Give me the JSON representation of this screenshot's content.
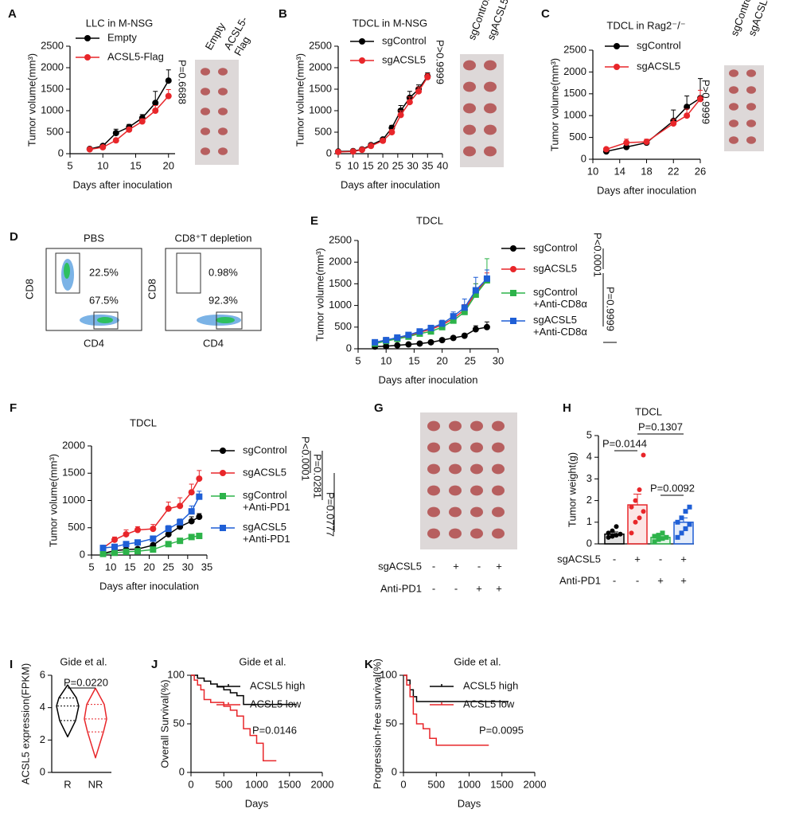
{
  "chart_data": [
    {
      "panel": "A",
      "type": "line",
      "title": "LLC in M-NSG",
      "x_label": "Days after inoculation",
      "y_label": "Tumor volume(mm³)",
      "x": [
        8,
        10,
        12,
        14,
        16,
        18,
        20
      ],
      "series": [
        {
          "name": "Empty",
          "color": "#000000",
          "marker": "circle",
          "values": [
            110,
            180,
            480,
            620,
            830,
            1180,
            1700
          ],
          "errors": [
            20,
            40,
            90,
            60,
            80,
            270,
            250
          ]
        },
        {
          "name": "ACSL5-Flag",
          "color": "#e8262a",
          "marker": "circle",
          "values": [
            100,
            150,
            310,
            560,
            750,
            1000,
            1340
          ],
          "errors": [
            20,
            30,
            40,
            50,
            60,
            120,
            150
          ]
        }
      ],
      "xlim": [
        5,
        21
      ],
      "xticks": [
        5,
        10,
        15,
        20
      ],
      "ylim": [
        0,
        2500
      ],
      "yticks": [
        0,
        500,
        1000,
        1500,
        2000,
        2500
      ],
      "annotations": [
        "P=0.6688"
      ],
      "photo_labels": [
        "Empty",
        "ACSL5-\nFlag"
      ]
    },
    {
      "panel": "B",
      "type": "line",
      "title": "TDCL  in M-NSG",
      "x_label": "Days after inoculation",
      "y_label": "Tumor volume(mm³)",
      "x": [
        5,
        10,
        13,
        16,
        20,
        23,
        26,
        29,
        32,
        35
      ],
      "series": [
        {
          "name": "sgControl",
          "color": "#000000",
          "marker": "circle",
          "values": [
            50,
            60,
            100,
            200,
            330,
            600,
            1000,
            1300,
            1500,
            1800
          ],
          "errors": [
            10,
            15,
            20,
            30,
            40,
            60,
            120,
            150,
            100,
            80
          ]
        },
        {
          "name": "sgACSL5",
          "color": "#e8262a",
          "marker": "circle",
          "values": [
            40,
            50,
            90,
            180,
            300,
            500,
            900,
            1200,
            1450,
            1780
          ],
          "errors": [
            10,
            10,
            20,
            30,
            40,
            60,
            100,
            120,
            100,
            80
          ]
        }
      ],
      "xlim": [
        5,
        40
      ],
      "xticks": [
        5,
        10,
        15,
        20,
        25,
        30,
        35,
        40
      ],
      "ylim": [
        0,
        2500
      ],
      "yticks": [
        0,
        500,
        1000,
        1500,
        2000,
        2500
      ],
      "annotations": [
        "P>0.9999"
      ],
      "photo_labels": [
        "sgControl",
        "sgACSL5"
      ]
    },
    {
      "panel": "C",
      "type": "line",
      "title": "TDCL in Rag2⁻/⁻",
      "x_label": "Days after inoculation",
      "y_label": "Tumor volume(mm³)",
      "x": [
        12,
        15,
        18,
        22,
        24,
        26
      ],
      "series": [
        {
          "name": "sgControl",
          "color": "#000000",
          "marker": "circle",
          "values": [
            180,
            280,
            380,
            880,
            1200,
            1400
          ],
          "errors": [
            30,
            60,
            50,
            250,
            250,
            450
          ]
        },
        {
          "name": "sgACSL5",
          "color": "#e8262a",
          "marker": "circle",
          "values": [
            230,
            380,
            400,
            820,
            1000,
            1380
          ],
          "errors": [
            30,
            80,
            60,
            100,
            150,
            200
          ]
        }
      ],
      "xlim": [
        10,
        26
      ],
      "xticks": [
        10,
        14,
        18,
        22,
        26
      ],
      "ylim": [
        0,
        2500
      ],
      "yticks": [
        0,
        500,
        1000,
        1500,
        2000,
        2500
      ],
      "annotations": [
        "P>0.9999"
      ],
      "photo_labels": [
        "sgControl",
        "sgACSL5"
      ]
    },
    {
      "panel": "E",
      "type": "line",
      "title": "TDCL",
      "x_label": "Days after inoculation",
      "y_label": "Tumor volume(mm³)",
      "x": [
        8,
        10,
        12,
        14,
        16,
        18,
        20,
        22,
        24,
        26,
        28
      ],
      "series": [
        {
          "name": "sgControl",
          "color": "#000000",
          "marker": "circle",
          "values": [
            50,
            60,
            80,
            100,
            120,
            150,
            200,
            250,
            300,
            450,
            500
          ],
          "errors": [
            10,
            10,
            15,
            15,
            20,
            20,
            30,
            40,
            50,
            80,
            120
          ]
        },
        {
          "name": "sgACSL5",
          "color": "#e8262a",
          "marker": "circle",
          "values": [
            150,
            200,
            250,
            300,
            380,
            450,
            550,
            700,
            900,
            1300,
            1600
          ],
          "errors": [
            20,
            30,
            30,
            40,
            50,
            60,
            80,
            100,
            120,
            200,
            150
          ]
        },
        {
          "name": "sgControl\n+Anti-CD8α",
          "color": "#2db34a",
          "marker": "square",
          "values": [
            120,
            180,
            230,
            280,
            350,
            400,
            500,
            650,
            850,
            1250,
            1580
          ],
          "errors": [
            20,
            20,
            30,
            40,
            40,
            50,
            70,
            90,
            120,
            250,
            500
          ]
        },
        {
          "name": "sgACSL5\n+Anti-CD8α",
          "color": "#1f5fd6",
          "marker": "square",
          "values": [
            150,
            200,
            260,
            320,
            400,
            480,
            580,
            750,
            950,
            1350,
            1620
          ],
          "errors": [
            20,
            30,
            30,
            40,
            50,
            60,
            80,
            100,
            200,
            300,
            200
          ]
        }
      ],
      "xlim": [
        5,
        30
      ],
      "xticks": [
        5,
        10,
        15,
        20,
        25,
        30
      ],
      "ylim": [
        0,
        2500
      ],
      "yticks": [
        0,
        500,
        1000,
        1500,
        2000,
        2500
      ],
      "annotations": [
        "P<0.0001",
        "P=0.9999"
      ]
    },
    {
      "panel": "F",
      "type": "line",
      "title": "TDCL",
      "x_label": "Days after inoculation",
      "y_label": "Tumor volume(mm³)",
      "x": [
        8,
        11,
        14,
        17,
        21,
        25,
        28,
        31,
        33
      ],
      "series": [
        {
          "name": "sgControl",
          "color": "#000000",
          "marker": "circle",
          "values": [
            30,
            80,
            100,
            110,
            180,
            380,
            520,
            620,
            700
          ],
          "errors": [
            10,
            20,
            20,
            20,
            30,
            50,
            60,
            80,
            60
          ]
        },
        {
          "name": "sgACSL5",
          "color": "#e8262a",
          "marker": "circle",
          "values": [
            130,
            280,
            380,
            460,
            480,
            850,
            900,
            1150,
            1400
          ],
          "errors": [
            20,
            50,
            80,
            60,
            80,
            120,
            150,
            150,
            150
          ]
        },
        {
          "name": "sgControl\n+Anti-PD1",
          "color": "#2db34a",
          "marker": "square",
          "values": [
            20,
            40,
            60,
            70,
            100,
            200,
            260,
            330,
            350
          ],
          "errors": [
            5,
            10,
            10,
            10,
            20,
            30,
            30,
            40,
            40
          ]
        },
        {
          "name": "sgACSL5\n+Anti-PD1",
          "color": "#1f5fd6",
          "marker": "square",
          "values": [
            130,
            150,
            200,
            230,
            300,
            480,
            600,
            800,
            1070
          ],
          "errors": [
            20,
            20,
            30,
            30,
            40,
            60,
            60,
            100,
            100
          ]
        }
      ],
      "xlim": [
        5,
        35
      ],
      "xticks": [
        5,
        10,
        15,
        20,
        25,
        30,
        35
      ],
      "ylim": [
        0,
        2000
      ],
      "yticks": [
        0,
        500,
        1000,
        1500,
        2000
      ],
      "annotations": [
        "P<0.0001",
        "P=0.0281",
        "P=0.0777"
      ]
    },
    {
      "panel": "H",
      "type": "bar",
      "title": "TDCL",
      "y_label": "Tumor weight(g)",
      "values": [
        0.45,
        1.8,
        0.3,
        1.0
      ],
      "errors": [
        0.1,
        0.5,
        0.1,
        0.2
      ],
      "colors": [
        "#000000",
        "#e8262a",
        "#2db34a",
        "#1f5fd6"
      ],
      "markers": [
        "circle",
        "circle",
        "square",
        "square"
      ],
      "points": [
        [
          0.3,
          0.35,
          0.4,
          0.45,
          0.5,
          0.6,
          0.8
        ],
        [
          0.5,
          1.0,
          1.2,
          1.5,
          1.7,
          2.0,
          2.5,
          4.1
        ],
        [
          0.1,
          0.2,
          0.25,
          0.3,
          0.35,
          0.4,
          0.5
        ],
        [
          0.3,
          0.5,
          0.7,
          0.9,
          1.0,
          1.2,
          1.5,
          1.7
        ]
      ],
      "ylim": [
        0,
        5
      ],
      "yticks": [
        0,
        1,
        2,
        3,
        4,
        5
      ],
      "rows": [
        {
          "label": "sgACSL5",
          "signs": [
            "-",
            "+",
            "-",
            "+"
          ]
        },
        {
          "label": "Anti-PD1",
          "signs": [
            "-",
            "-",
            "+",
            "+"
          ]
        }
      ],
      "annotations": [
        "P=0.0144",
        "P=0.1307",
        "P=0.0092"
      ]
    },
    {
      "panel": "I",
      "type": "violin",
      "title": "Gide et al.",
      "y_label": "ACSL5 expression(FPKM)",
      "categories": [
        "R",
        "NR"
      ],
      "colors": [
        "#000000",
        "#e8262a"
      ],
      "stats": [
        {
          "min": 2.2,
          "q1": 3.2,
          "median": 4.1,
          "q3": 4.6,
          "max": 5.4
        },
        {
          "min": 0.9,
          "q1": 2.5,
          "median": 3.3,
          "q3": 4.2,
          "max": 5.2
        }
      ],
      "ylim": [
        0,
        6
      ],
      "yticks": [
        0,
        2,
        4,
        6
      ],
      "annotations": [
        "P=0.0220"
      ]
    },
    {
      "panel": "J",
      "type": "survival",
      "title": "Gide et al.",
      "x_label": "Days",
      "y_label": "Overall Survival(%)",
      "series": [
        {
          "name": "ACSL5 high",
          "color": "#000000",
          "x": [
            0,
            100,
            200,
            300,
            400,
            500,
            600,
            700,
            800,
            1600
          ],
          "values": [
            100,
            97,
            94,
            91,
            88,
            85,
            82,
            79,
            70,
            70
          ]
        },
        {
          "name": "ACSL5 low",
          "color": "#e8262a",
          "x": [
            0,
            50,
            100,
            150,
            200,
            300,
            500,
            600,
            700,
            800,
            900,
            1000,
            1100,
            1300
          ],
          "values": [
            100,
            95,
            90,
            85,
            75,
            72,
            68,
            64,
            58,
            45,
            38,
            30,
            12,
            12
          ]
        }
      ],
      "xlim": [
        0,
        2000
      ],
      "xticks": [
        0,
        500,
        1000,
        1500,
        2000
      ],
      "ylim": [
        0,
        100
      ],
      "yticks": [
        0,
        50,
        100
      ],
      "annotations": [
        "P=0.0146"
      ]
    },
    {
      "panel": "K",
      "type": "survival",
      "title": "Gide et al.",
      "x_label": "Days",
      "y_label": "Progression-free survival(%)",
      "series": [
        {
          "name": "ACSL5 high",
          "color": "#000000",
          "x": [
            0,
            50,
            100,
            150,
            200,
            1600
          ],
          "values": [
            100,
            95,
            85,
            78,
            73,
            73
          ]
        },
        {
          "name": "ACSL5 low",
          "color": "#e8262a",
          "x": [
            0,
            50,
            100,
            150,
            200,
            300,
            400,
            500,
            1300
          ],
          "values": [
            100,
            90,
            78,
            60,
            50,
            45,
            35,
            28,
            28
          ]
        }
      ],
      "xlim": [
        0,
        2000
      ],
      "xticks": [
        0,
        500,
        1000,
        1500,
        2000
      ],
      "ylim": [
        0,
        100
      ],
      "yticks": [
        0,
        50,
        100
      ],
      "annotations": [
        "P=0.0095"
      ]
    }
  ],
  "flow": {
    "panel": "D",
    "y_label": "CD8",
    "x_label": "CD4",
    "plots": [
      {
        "title": "PBS",
        "gates": [
          "22.5%",
          "67.5%"
        ]
      },
      {
        "title": "CD8⁺T depletion",
        "gates": [
          "0.98%",
          "92.3%"
        ]
      }
    ]
  },
  "photo_table": {
    "panel": "G",
    "rows": [
      {
        "label": "sgACSL5",
        "signs": [
          "-",
          "+",
          "-",
          "+"
        ]
      },
      {
        "label": "Anti-PD1",
        "signs": [
          "-",
          "-",
          "+",
          "+"
        ]
      }
    ]
  }
}
